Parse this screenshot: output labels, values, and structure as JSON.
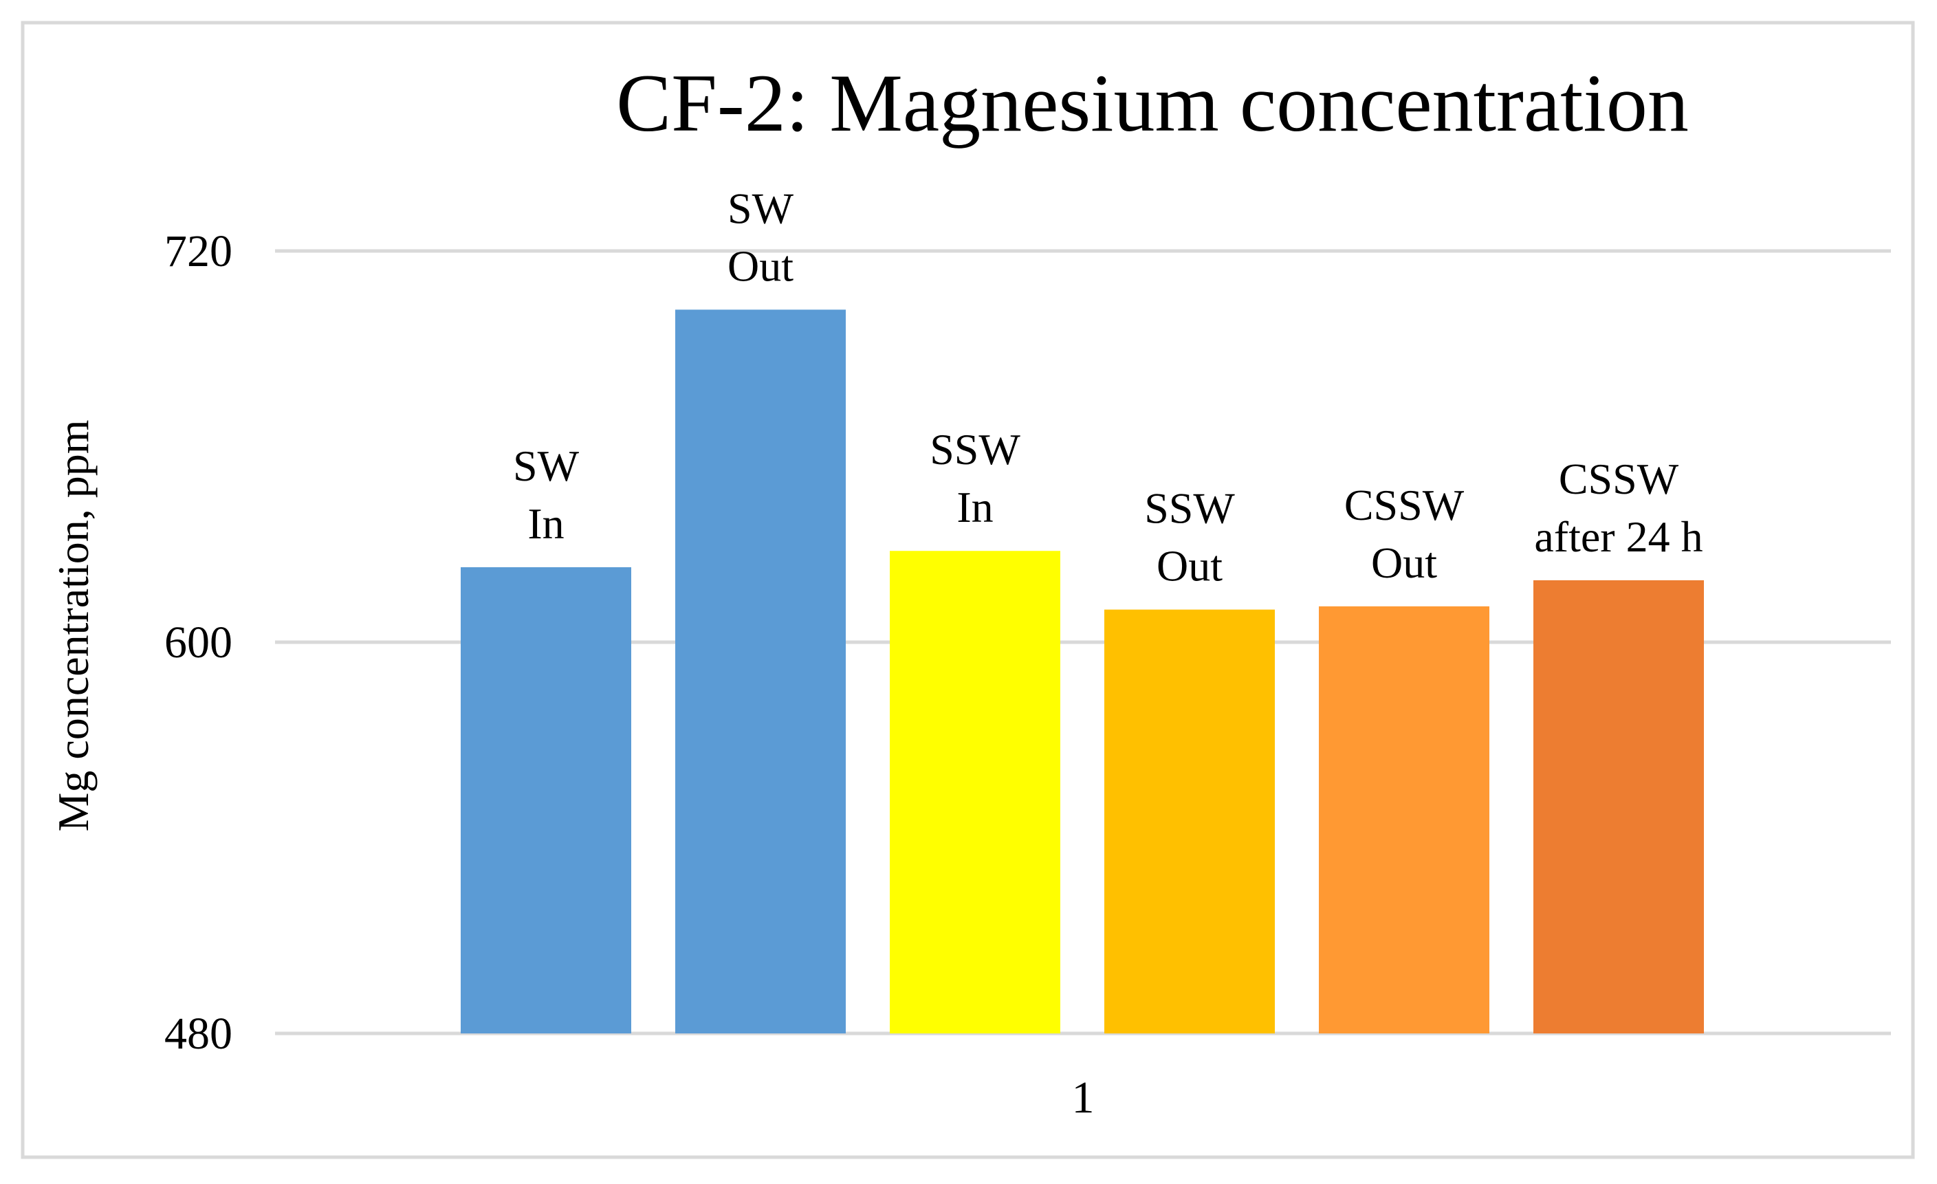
{
  "chart_data": {
    "type": "bar",
    "title": "CF-2: Magnesium concentration",
    "ylabel": "Mg concentration, ppm",
    "xlabel": "",
    "categories": [
      "1"
    ],
    "ylim": [
      480,
      720
    ],
    "yticks": [
      480,
      600,
      720
    ],
    "grid": true,
    "series": [
      {
        "name": "SW In",
        "label_lines": [
          "SW",
          "In"
        ],
        "values": [
          623
        ],
        "color": "#5B9BD5"
      },
      {
        "name": "SW Out",
        "label_lines": [
          "SW",
          "Out"
        ],
        "values": [
          702
        ],
        "color": "#5B9BD5"
      },
      {
        "name": "SSW In",
        "label_lines": [
          "SSW",
          "In"
        ],
        "values": [
          628
        ],
        "color": "#FFFF00"
      },
      {
        "name": "SSW Out",
        "label_lines": [
          "SSW",
          "Out"
        ],
        "values": [
          610
        ],
        "color": "#FFC000"
      },
      {
        "name": "CSSW Out",
        "label_lines": [
          "CSSW",
          "Out"
        ],
        "values": [
          611
        ],
        "color": "#FF9933"
      },
      {
        "name": "CSSW after 24 h",
        "label_lines": [
          "CSSW",
          "after 24 h"
        ],
        "values": [
          619
        ],
        "color": "#ED7D31"
      }
    ]
  }
}
